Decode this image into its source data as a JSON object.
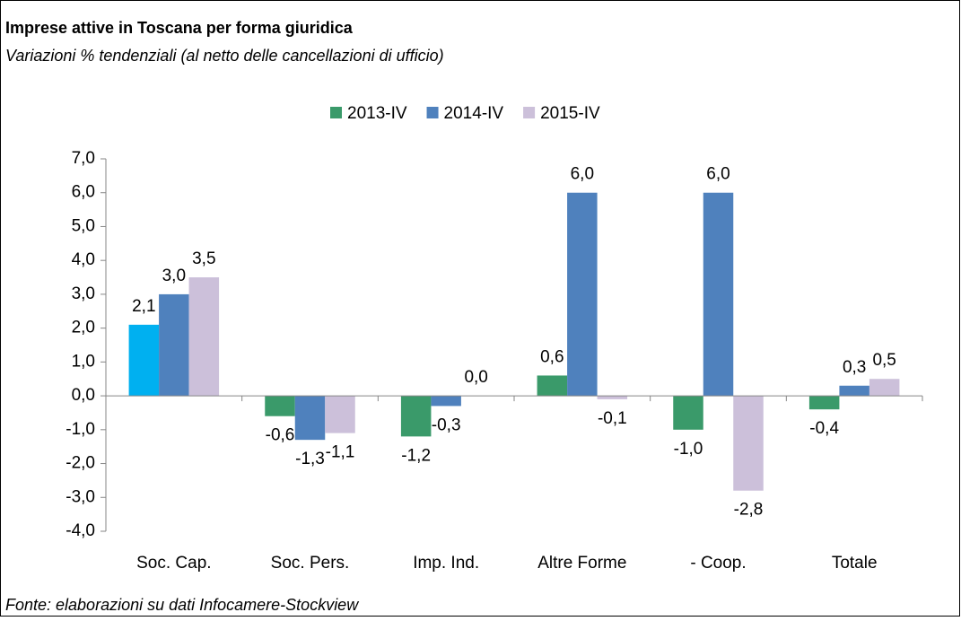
{
  "chart_data": {
    "type": "bar",
    "title": "Imprese attive in Toscana per forma giuridica",
    "subtitle": "Variazioni % tendenziali (al netto delle cancellazioni di ufficio)",
    "source": "Fonte: elaborazioni su dati Infocamere-Stockview",
    "categories": [
      "Soc. Cap.",
      "Soc. Pers.",
      "Imp. Ind.",
      "Altre Forme",
      "- Coop.",
      "Totale"
    ],
    "series": [
      {
        "name": "2013-IV",
        "color": "#3a9a6a",
        "colors": [
          "#00b0f0",
          "#3a9a6a",
          "#3a9a6a",
          "#3a9a6a",
          "#3a9a6a",
          "#3a9a6a"
        ],
        "values": [
          2.1,
          -0.6,
          -1.2,
          0.6,
          -1.0,
          -0.4
        ],
        "value_labels": [
          "2,1",
          "-0,6",
          "-1,2",
          "0,6",
          "-1,0",
          "-0,4"
        ]
      },
      {
        "name": "2014-IV",
        "color": "#4f81bd",
        "values": [
          3.0,
          -1.3,
          -0.3,
          6.0,
          6.0,
          0.3
        ],
        "value_labels": [
          "3,0",
          "-1,3",
          "-0,3",
          "6,0",
          "6,0",
          "0,3"
        ]
      },
      {
        "name": "2015-IV",
        "color": "#ccc0da",
        "values": [
          3.5,
          -1.1,
          0.0,
          -0.1,
          -2.8,
          0.5
        ],
        "value_labels": [
          "3,5",
          "-1,1",
          "0,0",
          "-0,1",
          "-2,8",
          "0,5"
        ]
      }
    ],
    "ylim": [
      -4,
      7
    ],
    "yticks": [
      {
        "value": -4,
        "label": "-4,0"
      },
      {
        "value": -3,
        "label": "-3,0"
      },
      {
        "value": -2,
        "label": "-2,0"
      },
      {
        "value": -1,
        "label": "-1,0"
      },
      {
        "value": 0,
        "label": "0,0"
      },
      {
        "value": 1,
        "label": "1,0"
      },
      {
        "value": 2,
        "label": "2,0"
      },
      {
        "value": 3,
        "label": "3,0"
      },
      {
        "value": 4,
        "label": "4,0"
      },
      {
        "value": 5,
        "label": "5,0"
      },
      {
        "value": 6,
        "label": "6,0"
      },
      {
        "value": 7,
        "label": "7,0"
      }
    ],
    "grid": false,
    "legend": "top"
  }
}
